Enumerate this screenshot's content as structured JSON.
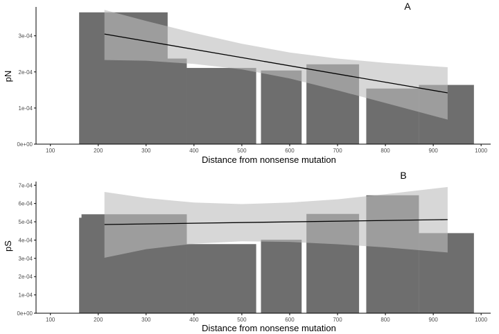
{
  "colors": {
    "bar": "#6e6e6e",
    "ribbon": "#bdbdbd",
    "line": "#000000",
    "axis": "#000000",
    "baseline": "#c8c8c8"
  },
  "chart_data": [
    {
      "panel": "A",
      "type": "bar",
      "xlabel": "Distance from nonsense mutation",
      "ylabel": "pN",
      "xlim": [
        70,
        1020
      ],
      "ylim": [
        0,
        0.00038
      ],
      "x_ticks": [
        100,
        200,
        300,
        400,
        500,
        600,
        700,
        800,
        900,
        1000
      ],
      "y_ticks": [
        0,
        0.0001,
        0.0002,
        0.0003
      ],
      "y_tick_labels": [
        "0e+00",
        "1e-04",
        "2e-04",
        "3e-04"
      ],
      "bars": [
        {
          "x_start": 160,
          "x_end": 345,
          "value": 0.000365
        },
        {
          "x_start": 165,
          "x_end": 385,
          "value": 0.000237
        },
        {
          "x_start": 385,
          "x_end": 530,
          "value": 0.000211
        },
        {
          "x_start": 540,
          "x_end": 625,
          "value": 0.000204
        },
        {
          "x_start": 635,
          "x_end": 745,
          "value": 0.000221
        },
        {
          "x_start": 760,
          "x_end": 870,
          "value": 0.000154
        },
        {
          "x_start": 870,
          "x_end": 985,
          "value": 0.000164
        }
      ],
      "fit_line": {
        "x": [
          213,
          930
        ],
        "y": [
          0.000305,
          0.000142
        ]
      },
      "confidence_band": {
        "x": [
          213,
          300,
          400,
          500,
          600,
          700,
          800,
          930
        ],
        "upper": [
          0.000372,
          0.000341,
          0.000308,
          0.000278,
          0.000254,
          0.000237,
          0.000225,
          0.000213
        ],
        "lower": [
          0.000233,
          0.000231,
          0.000222,
          0.000207,
          0.000182,
          0.000149,
          0.000114,
          6.8e-05
        ]
      }
    },
    {
      "panel": "B",
      "type": "bar",
      "xlabel": "Distance from nonsense mutation",
      "ylabel": "pS",
      "xlim": [
        70,
        1020
      ],
      "ylim": [
        0,
        0.00072
      ],
      "x_ticks": [
        100,
        200,
        300,
        400,
        500,
        600,
        700,
        800,
        900,
        1000
      ],
      "y_ticks": [
        0,
        0.0001,
        0.0002,
        0.0003,
        0.0004,
        0.0005,
        0.0006,
        0.0007
      ],
      "y_tick_labels": [
        "0e+00",
        "1e-04",
        "2e-04",
        "3e-04",
        "4e-04",
        "5e-04",
        "6e-04",
        "7e-04"
      ],
      "bars": [
        {
          "x_start": 160,
          "x_end": 345,
          "value": 0.000522
        },
        {
          "x_start": 165,
          "x_end": 385,
          "value": 0.000541
        },
        {
          "x_start": 385,
          "x_end": 530,
          "value": 0.000378
        },
        {
          "x_start": 540,
          "x_end": 625,
          "value": 0.000402
        },
        {
          "x_start": 635,
          "x_end": 745,
          "value": 0.000543
        },
        {
          "x_start": 760,
          "x_end": 870,
          "value": 0.000645
        },
        {
          "x_start": 870,
          "x_end": 985,
          "value": 0.000438
        }
      ],
      "fit_line": {
        "x": [
          213,
          930
        ],
        "y": [
          0.000485,
          0.000512
        ]
      },
      "confidence_band": {
        "x": [
          213,
          300,
          400,
          500,
          600,
          700,
          800,
          930
        ],
        "upper": [
          0.000663,
          0.00063,
          0.000605,
          0.000597,
          0.000605,
          0.000623,
          0.000651,
          0.00069
        ],
        "lower": [
          0.000303,
          0.00035,
          0.00038,
          0.000393,
          0.00039,
          0.000377,
          0.00036,
          0.000332
        ]
      }
    }
  ]
}
